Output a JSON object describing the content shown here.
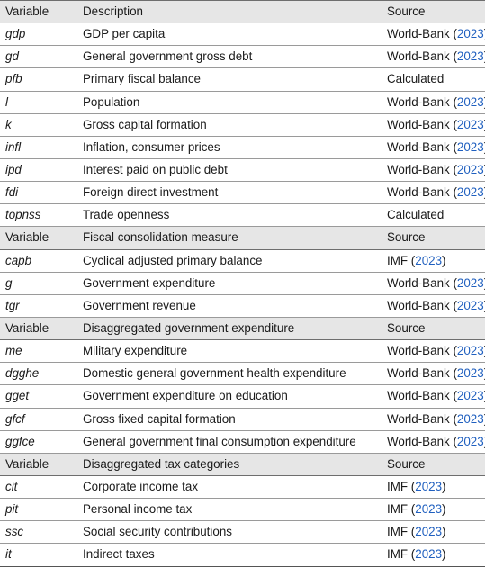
{
  "sections": [
    {
      "header": {
        "variable": "Variable",
        "measure": "Description",
        "source": "Source"
      },
      "rows": [
        {
          "variable": "gdp",
          "description": "GDP per capita",
          "source": "World-Bank",
          "year": "2023"
        },
        {
          "variable": "gd",
          "description": "General government gross debt",
          "source": "World-Bank",
          "year": "2023"
        },
        {
          "variable": "pfb",
          "description": "Primary fiscal balance",
          "source": "Calculated",
          "year": ""
        },
        {
          "variable": "l",
          "description": "Population",
          "source": "World-Bank",
          "year": "2023"
        },
        {
          "variable": "k",
          "description": "Gross capital formation",
          "source": "World-Bank",
          "year": "2023"
        },
        {
          "variable": "infl",
          "description": "Inflation, consumer prices",
          "source": "World-Bank",
          "year": "2023"
        },
        {
          "variable": "ipd",
          "description": "Interest paid on public debt",
          "source": "World-Bank",
          "year": "2023"
        },
        {
          "variable": "fdi",
          "description": "Foreign direct investment",
          "source": "World-Bank",
          "year": "2023"
        },
        {
          "variable": "topnss",
          "description": "Trade openness",
          "source": "Calculated",
          "year": ""
        }
      ]
    },
    {
      "header": {
        "variable": "Variable",
        "measure": "Fiscal consolidation measure",
        "source": "Source"
      },
      "rows": [
        {
          "variable": "capb",
          "description": "Cyclical adjusted primary balance",
          "source": "IMF",
          "year": "2023"
        },
        {
          "variable": "g",
          "description": "Government expenditure",
          "source": "World-Bank",
          "year": "2023"
        },
        {
          "variable": "tgr",
          "description": "Government revenue",
          "source": "World-Bank",
          "year": "2023"
        }
      ]
    },
    {
      "header": {
        "variable": "Variable",
        "measure": "Disaggregated government expenditure",
        "source": "Source"
      },
      "rows": [
        {
          "variable": "me",
          "description": "Military expenditure",
          "source": "World-Bank",
          "year": "2023"
        },
        {
          "variable": "dgghe",
          "description": "Domestic general government health expenditure",
          "source": "World-Bank",
          "year": "2023"
        },
        {
          "variable": "gget",
          "description": "Government expenditure on education",
          "source": "World-Bank",
          "year": "2023"
        },
        {
          "variable": "gfcf",
          "description": "Gross fixed capital formation",
          "source": "World-Bank",
          "year": "2023"
        },
        {
          "variable": "ggfce",
          "description": "General government final consumption expenditure",
          "source": "World-Bank",
          "year": "2023"
        }
      ]
    },
    {
      "header": {
        "variable": "Variable",
        "measure": "Disaggregated tax categories",
        "source": "Source"
      },
      "rows": [
        {
          "variable": "cit",
          "description": "Corporate income tax",
          "source": "IMF",
          "year": "2023"
        },
        {
          "variable": "pit",
          "description": "Personal income tax",
          "source": "IMF",
          "year": "2023"
        },
        {
          "variable": "ssc",
          "description": "Social security contributions",
          "source": "IMF",
          "year": "2023"
        },
        {
          "variable": "it",
          "description": "Indirect taxes",
          "source": "IMF",
          "year": "2023"
        }
      ]
    }
  ]
}
